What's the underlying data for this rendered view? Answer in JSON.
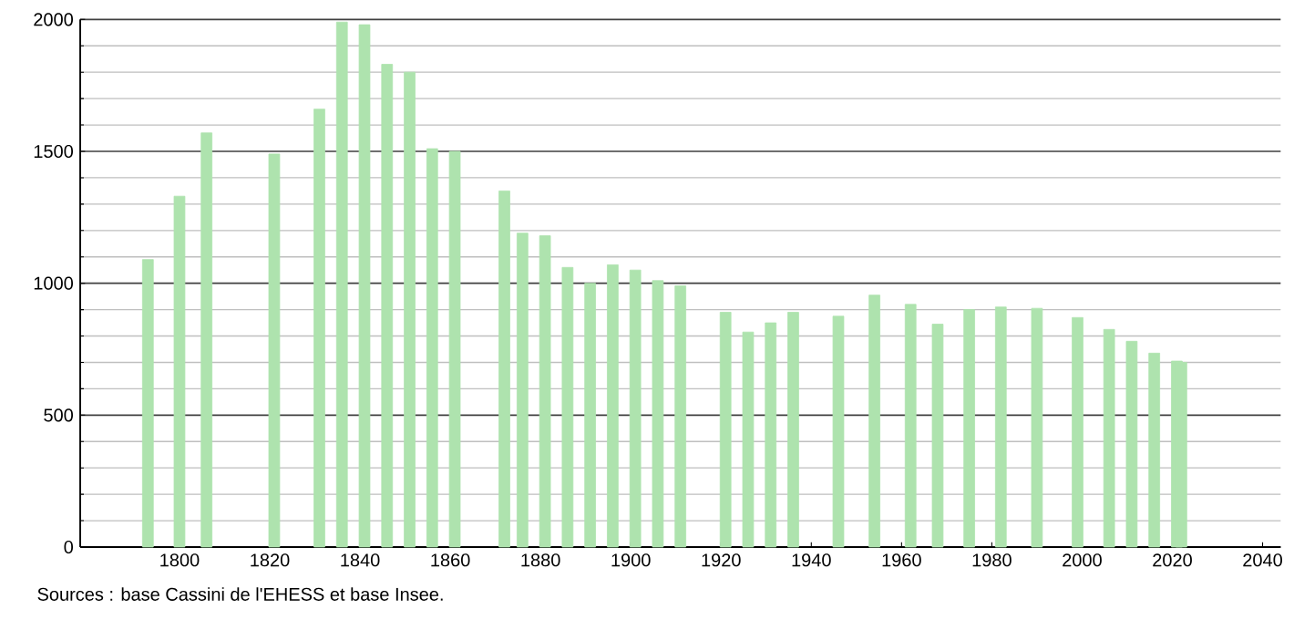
{
  "chart_data": {
    "type": "bar",
    "x": [
      1793,
      1800,
      1806,
      1821,
      1831,
      1836,
      1841,
      1846,
      1851,
      1856,
      1861,
      1872,
      1876,
      1881,
      1886,
      1891,
      1896,
      1901,
      1906,
      1911,
      1921,
      1926,
      1931,
      1936,
      1946,
      1954,
      1962,
      1968,
      1975,
      1982,
      1990,
      1999,
      2006,
      2011,
      2016,
      2021,
      2022
    ],
    "values": [
      1090,
      1330,
      1570,
      1490,
      1660,
      1990,
      1980,
      1830,
      1800,
      1510,
      1500,
      1350,
      1190,
      1180,
      1060,
      1000,
      1070,
      1050,
      1010,
      990,
      890,
      815,
      850,
      890,
      875,
      955,
      920,
      845,
      900,
      910,
      905,
      870,
      825,
      780,
      735,
      705,
      700
    ],
    "color": "#aee3ae",
    "xlim": [
      1778,
      2044
    ],
    "xticks": [
      1800,
      1820,
      1840,
      1860,
      1880,
      1900,
      1920,
      1940,
      1960,
      1980,
      2000,
      2020,
      2040
    ],
    "ylim": [
      0,
      2000
    ],
    "yticks": [
      0,
      {
        "value": 100,
        "label": null
      },
      {
        "value": 200,
        "label": null
      },
      {
        "value": 300,
        "label": null
      },
      {
        "value": 400,
        "label": null
      },
      500,
      {
        "value": 600,
        "label": null
      },
      {
        "value": 700,
        "label": null
      },
      {
        "value": 800,
        "label": null
      },
      {
        "value": 900,
        "label": null
      },
      1000,
      {
        "value": 1100,
        "label": null
      },
      {
        "value": 1200,
        "label": null
      },
      {
        "value": 1300,
        "label": null
      },
      {
        "value": 1400,
        "label": null
      },
      1500,
      {
        "value": 1600,
        "label": null
      },
      {
        "value": 1700,
        "label": null
      },
      {
        "value": 1800,
        "label": null
      },
      {
        "value": 1900,
        "label": null
      },
      2000
    ],
    "grid": "y",
    "annotations": [
      "Sources : base Cassini de l'EHESS et base Insee."
    ]
  }
}
